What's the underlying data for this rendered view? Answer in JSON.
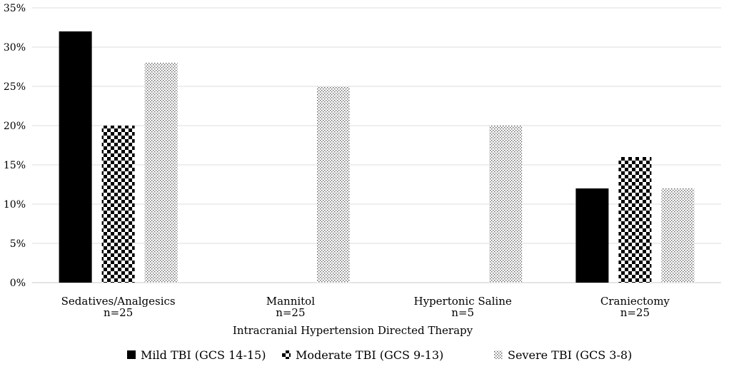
{
  "chart_data": {
    "type": "bar",
    "title": "",
    "xlabel": "Intracranial Hypertension Directed Therapy",
    "ylabel": "",
    "ylim": [
      0,
      35
    ],
    "yticks": [
      "0%",
      "5%",
      "10%",
      "15%",
      "20%",
      "25%",
      "30%",
      "35%"
    ],
    "ytick_values": [
      0,
      5,
      10,
      15,
      20,
      25,
      30,
      35
    ],
    "grid": true,
    "legend_position": "bottom",
    "categories": [
      {
        "label": "Sedatives/Analgesics",
        "n": "n=25"
      },
      {
        "label": "Mannitol",
        "n": "n=25"
      },
      {
        "label": "Hypertonic Saline",
        "n": "n=5"
      },
      {
        "label": "Craniectomy",
        "n": "n=25"
      }
    ],
    "series": [
      {
        "name": "Mild TBI (GCS 14-15)",
        "pattern": "solid",
        "values": [
          32,
          0,
          0,
          12
        ]
      },
      {
        "name": "Moderate TBI (GCS 9-13)",
        "pattern": "checker",
        "values": [
          20,
          0,
          0,
          16
        ]
      },
      {
        "name": "Severe TBI (GCS 3-8)",
        "pattern": "dots",
        "values": [
          28,
          25,
          20,
          12
        ]
      }
    ]
  }
}
